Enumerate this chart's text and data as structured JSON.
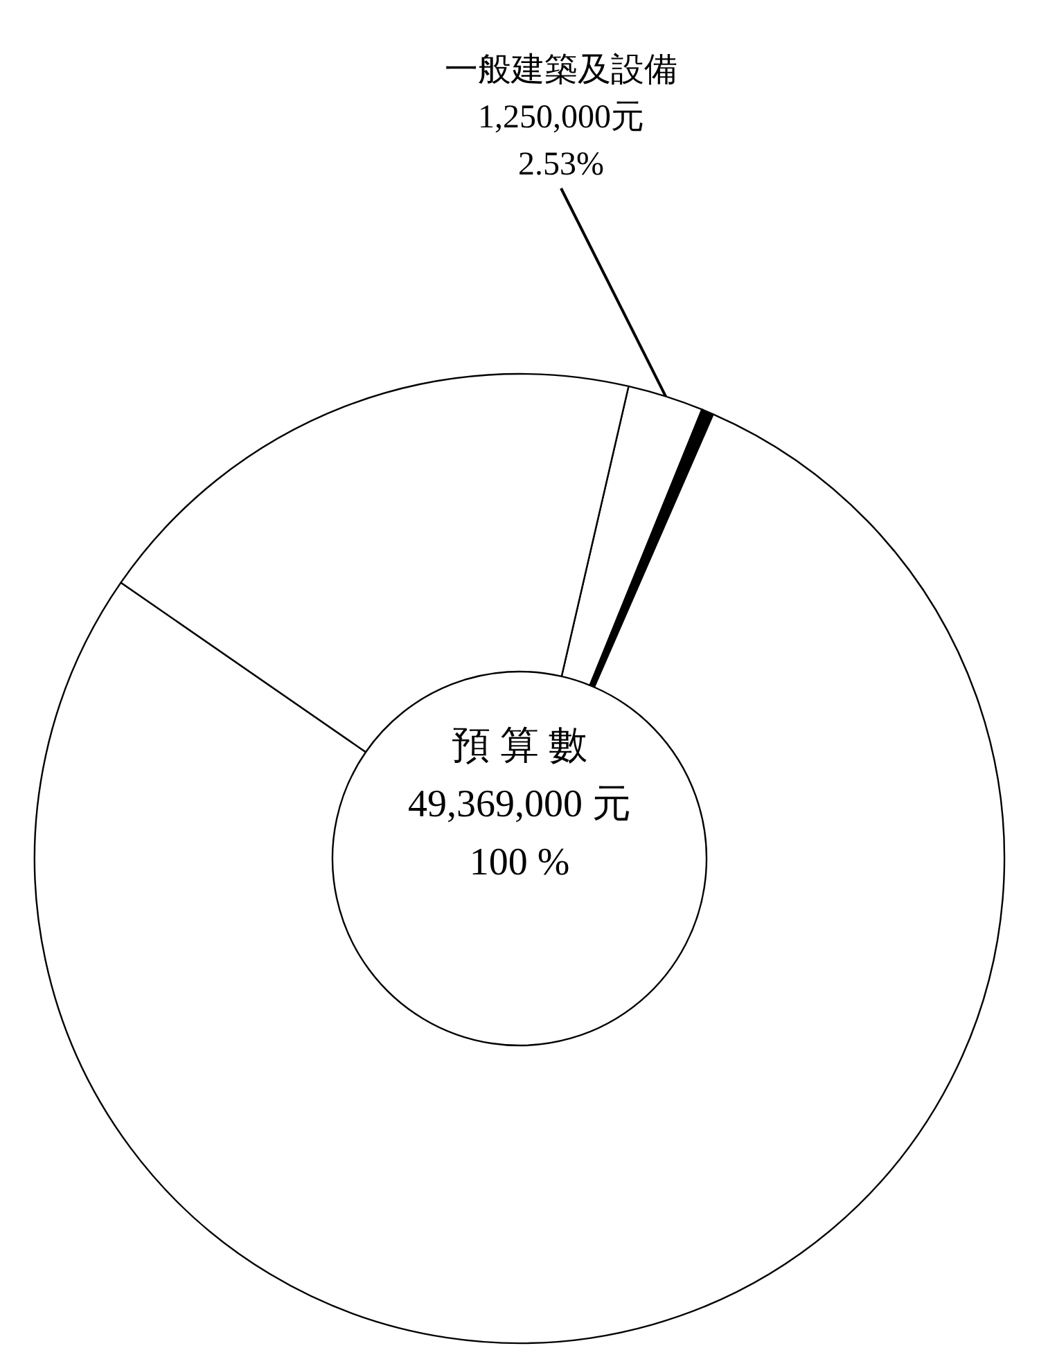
{
  "chart_data": {
    "type": "donut",
    "categories": [
      "一般建築及設備",
      null,
      null,
      null
    ],
    "values": [
      2.53,
      0.4,
      78.1,
      18.97
    ],
    "colors": [
      "#ffffff",
      "#000000",
      "#ffffff",
      "#ffffff"
    ],
    "value_labels": [
      "1,250,000元\n2.53%",
      null,
      null,
      null
    ],
    "annotations": [
      "預 算 數",
      "49,369,000 元",
      "100 %"
    ],
    "legend": false
  }
}
